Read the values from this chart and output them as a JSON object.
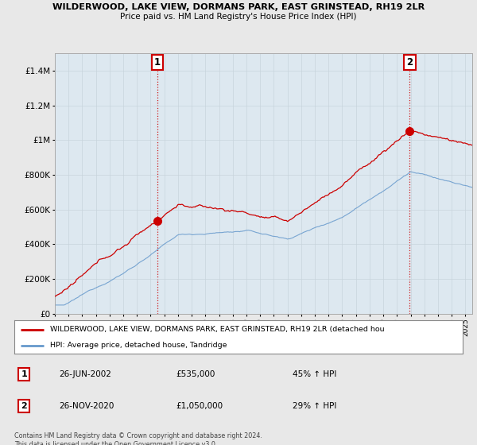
{
  "title1": "WILDERWOOD, LAKE VIEW, DORMANS PARK, EAST GRINSTEAD, RH19 2LR",
  "title2": "Price paid vs. HM Land Registry's House Price Index (HPI)",
  "background_color": "#e8e8e8",
  "plot_bg": "#dde8f0",
  "red_color": "#cc0000",
  "blue_color": "#6699cc",
  "ann1_x": 2002.5,
  "ann1_y": 535000,
  "ann2_x": 2020.92,
  "ann2_y": 1050000,
  "legend1": "WILDERWOOD, LAKE VIEW, DORMANS PARK, EAST GRINSTEAD, RH19 2LR (detached hou",
  "legend2": "HPI: Average price, detached house, Tandridge",
  "ann1_label": "1",
  "ann2_label": "2",
  "ann1_date": "26-JUN-2002",
  "ann1_price": "£535,000",
  "ann1_hpi": "45% ↑ HPI",
  "ann2_date": "26-NOV-2020",
  "ann2_price": "£1,050,000",
  "ann2_hpi": "29% ↑ HPI",
  "copyright": "Contains HM Land Registry data © Crown copyright and database right 2024.\nThis data is licensed under the Open Government Licence v3.0.",
  "ylim": [
    0,
    1500000
  ],
  "yticks": [
    0,
    200000,
    400000,
    600000,
    800000,
    1000000,
    1200000,
    1400000
  ],
  "ytick_labels": [
    "£0",
    "£200K",
    "£400K",
    "£600K",
    "£800K",
    "£1M",
    "£1.2M",
    "£1.4M"
  ],
  "xlim_start": 1995.3,
  "xlim_end": 2025.5,
  "seed": 12345
}
